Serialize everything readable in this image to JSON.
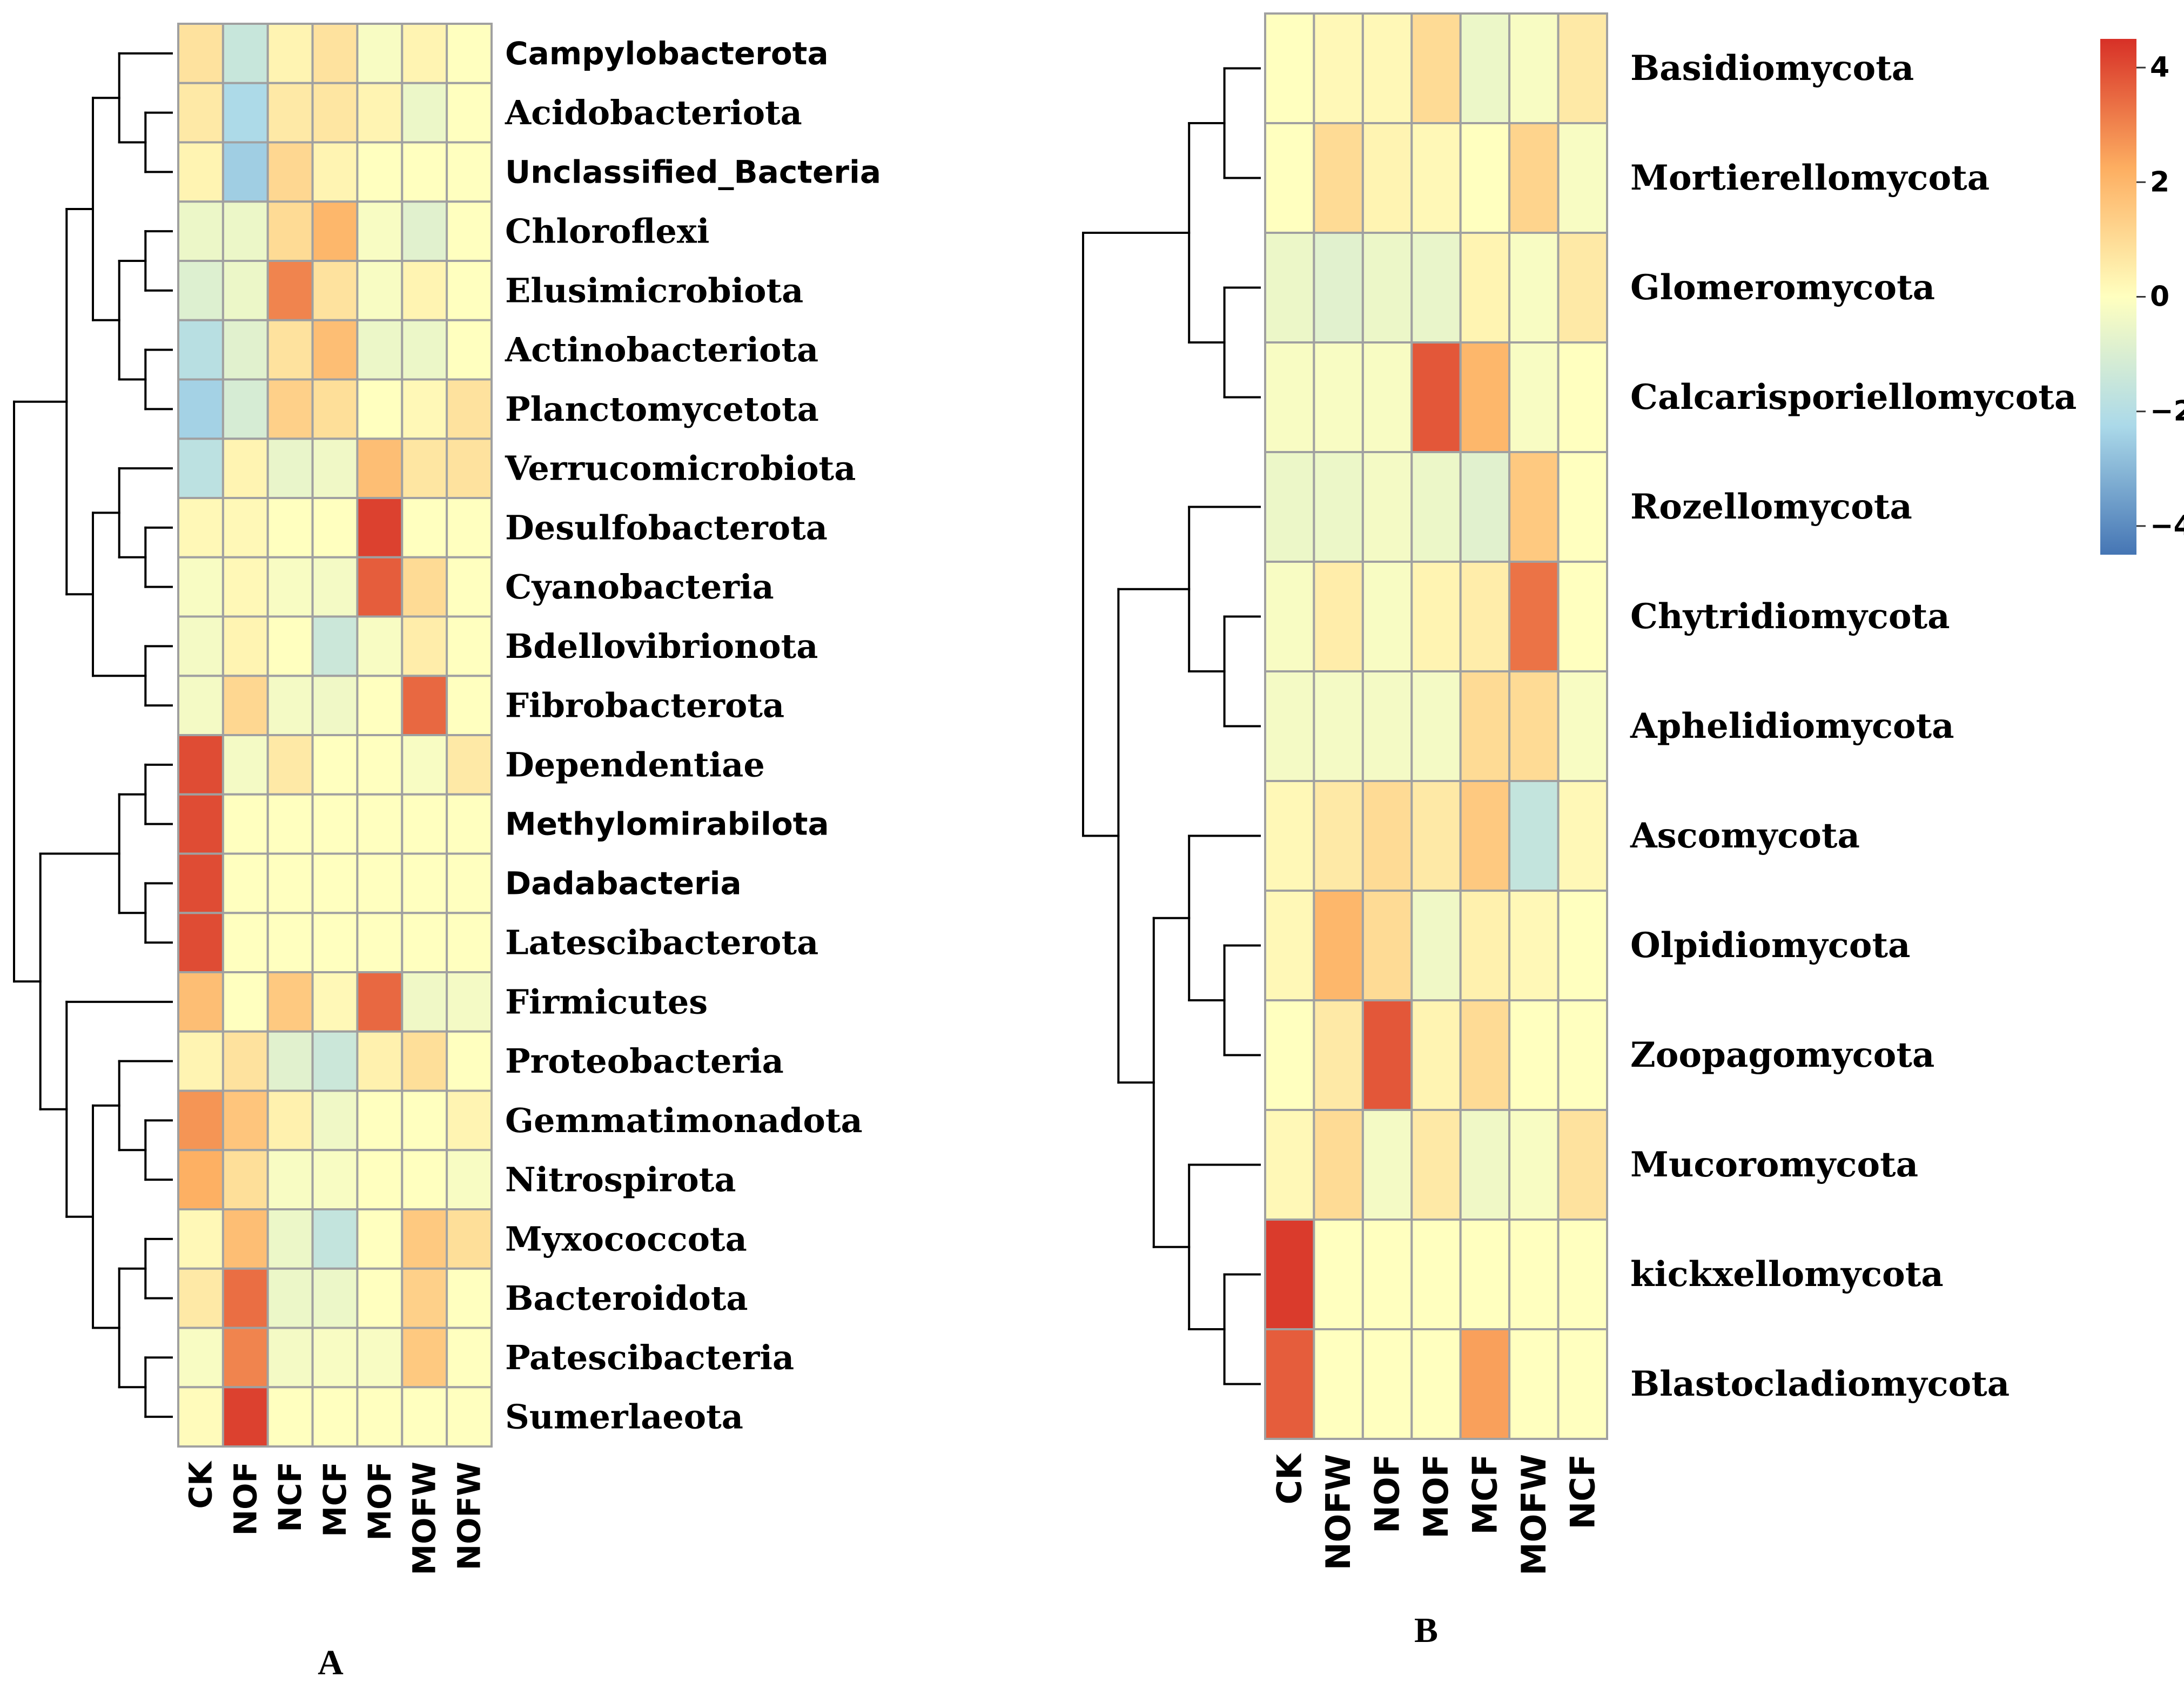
{
  "chart_data": [
    {
      "type": "heatmap",
      "panel": "A",
      "title": "",
      "xlabel": "",
      "ylabel": "",
      "columns": [
        "CK",
        "NOF",
        "NCF",
        "MCF",
        "MOF",
        "MOFW",
        "NOFW"
      ],
      "rows": [
        "Campylobacterota",
        "Acidobacteriota",
        "Unclassified_Bacteria",
        "Chloroflexi",
        "Elusimicrobiota",
        "Actinobacteriota",
        "Planctomycetota",
        "Verrucomicrobiota",
        "Desulfobacterota",
        "Cyanobacteria",
        "Bdellovibrionota",
        "Fibrobacterota",
        "Dependentiae",
        "Methylomirabilota",
        "Dadabacteria",
        "Latescibacterota",
        "Firmicutes",
        "Proteobacteria",
        "Gemmatimonadota",
        "Nitrospirota",
        "Myxococcota",
        "Bacteroidota",
        "Patescibacteria",
        "Sumerlaeota"
      ],
      "values": [
        [
          0.8,
          -1.5,
          0.3,
          0.8,
          -0.2,
          0.3,
          0.0
        ],
        [
          0.6,
          -2.2,
          0.6,
          0.7,
          0.3,
          -0.5,
          0.0
        ],
        [
          0.3,
          -2.5,
          1.1,
          0.3,
          0.0,
          0.0,
          0.0
        ],
        [
          -0.5,
          -0.5,
          1.0,
          2.0,
          -0.2,
          -0.8,
          0.0
        ],
        [
          -0.9,
          -0.5,
          3.0,
          0.8,
          -0.2,
          0.3,
          0.0
        ],
        [
          -1.9,
          -0.8,
          0.8,
          1.8,
          -0.5,
          -0.5,
          0.0
        ],
        [
          -2.4,
          -1.1,
          1.3,
          0.9,
          0.0,
          0.2,
          0.8
        ],
        [
          -1.8,
          0.3,
          -0.6,
          -0.4,
          1.8,
          0.7,
          0.8
        ],
        [
          0.2,
          0.2,
          0.0,
          0.0,
          4.2,
          0.0,
          0.0
        ],
        [
          -0.2,
          0.2,
          -0.2,
          -0.3,
          3.7,
          1.0,
          0.0
        ],
        [
          -0.3,
          0.3,
          0.0,
          -1.4,
          -0.2,
          0.5,
          0.0
        ],
        [
          -0.3,
          1.1,
          -0.3,
          -0.4,
          0.0,
          3.5,
          0.0
        ],
        [
          4.0,
          -0.3,
          0.6,
          0.0,
          0.0,
          -0.2,
          0.6
        ],
        [
          4.0,
          0.0,
          0.0,
          0.0,
          0.0,
          0.0,
          0.0
        ],
        [
          4.0,
          0.0,
          0.0,
          0.0,
          0.0,
          0.0,
          0.0
        ],
        [
          4.0,
          0.0,
          0.0,
          0.0,
          0.0,
          0.0,
          0.0
        ],
        [
          1.8,
          0.0,
          1.5,
          0.2,
          3.5,
          -0.4,
          -0.3
        ],
        [
          0.3,
          0.8,
          -0.8,
          -1.4,
          0.4,
          0.9,
          0.0
        ],
        [
          2.7,
          1.6,
          0.4,
          -0.4,
          0.0,
          0.0,
          0.3
        ],
        [
          2.2,
          0.9,
          -0.2,
          -0.2,
          0.0,
          0.0,
          -0.2
        ],
        [
          0.2,
          1.8,
          -0.5,
          -1.6,
          0.0,
          1.5,
          0.9
        ],
        [
          0.6,
          3.4,
          -0.5,
          -0.5,
          0.0,
          1.3,
          0.0
        ],
        [
          -0.2,
          3.0,
          -0.3,
          -0.2,
          -0.2,
          1.5,
          0.0
        ],
        [
          0.1,
          4.2,
          0.0,
          0.0,
          0.0,
          0.0,
          0.0
        ]
      ]
    },
    {
      "type": "heatmap",
      "panel": "B",
      "title": "",
      "xlabel": "",
      "ylabel": "",
      "columns": [
        "CK",
        "NOFW",
        "NOF",
        "MOF",
        "MCF",
        "MOFW",
        "NCF"
      ],
      "rows": [
        "Basidiomycota",
        "Mortierellomycota",
        "Glomeromycota",
        "Calcarisporiellomycota",
        "Rozellomycota",
        "Chytridiomycota",
        "Aphelidiomycota",
        "Ascomycota",
        "Olpidiomycota",
        "Zoopagomycota",
        "Mucoromycota",
        "kickxellomycota",
        "Blastocladiomycota"
      ],
      "values": [
        [
          0.0,
          0.2,
          0.2,
          1.0,
          -0.5,
          -0.2,
          0.6
        ],
        [
          0.0,
          1.0,
          0.3,
          0.2,
          0.0,
          1.2,
          -0.2
        ],
        [
          -0.5,
          -0.8,
          -0.5,
          -0.6,
          0.3,
          -0.2,
          0.6
        ],
        [
          -0.2,
          -0.2,
          -0.2,
          3.8,
          2.0,
          -0.2,
          0.0
        ],
        [
          -0.5,
          -0.5,
          -0.3,
          -0.5,
          -0.8,
          1.5,
          0.0
        ],
        [
          -0.2,
          0.5,
          -0.2,
          0.3,
          0.5,
          3.3,
          0.0
        ],
        [
          -0.3,
          -0.3,
          -0.3,
          -0.3,
          1.0,
          1.0,
          -0.2
        ],
        [
          0.2,
          0.6,
          1.0,
          0.6,
          1.5,
          -1.6,
          0.2
        ],
        [
          0.2,
          2.0,
          1.0,
          -0.4,
          0.4,
          0.2,
          0.0
        ],
        [
          0.0,
          0.6,
          3.8,
          0.3,
          1.0,
          0.0,
          0.0
        ],
        [
          0.2,
          1.0,
          -0.3,
          0.6,
          -0.4,
          -0.2,
          0.8
        ],
        [
          4.3,
          0.0,
          0.0,
          0.0,
          0.0,
          0.0,
          0.0
        ],
        [
          3.7,
          0.0,
          0.0,
          0.0,
          2.5,
          0.0,
          0.0
        ]
      ]
    }
  ],
  "legend": {
    "ticks": [
      4,
      2,
      0,
      -2,
      -4
    ],
    "tick_labels": [
      "4",
      "2",
      "0",
      "−2",
      "−4"
    ],
    "range": [
      -4.5,
      4.5
    ]
  },
  "colors": {
    "low": "#4575b4",
    "lowmid": "#abd9e9",
    "mid": "#ffffbf",
    "highmid": "#fdae61",
    "high": "#d73027",
    "grid": "#a0a0a0",
    "tree": "#000000"
  }
}
